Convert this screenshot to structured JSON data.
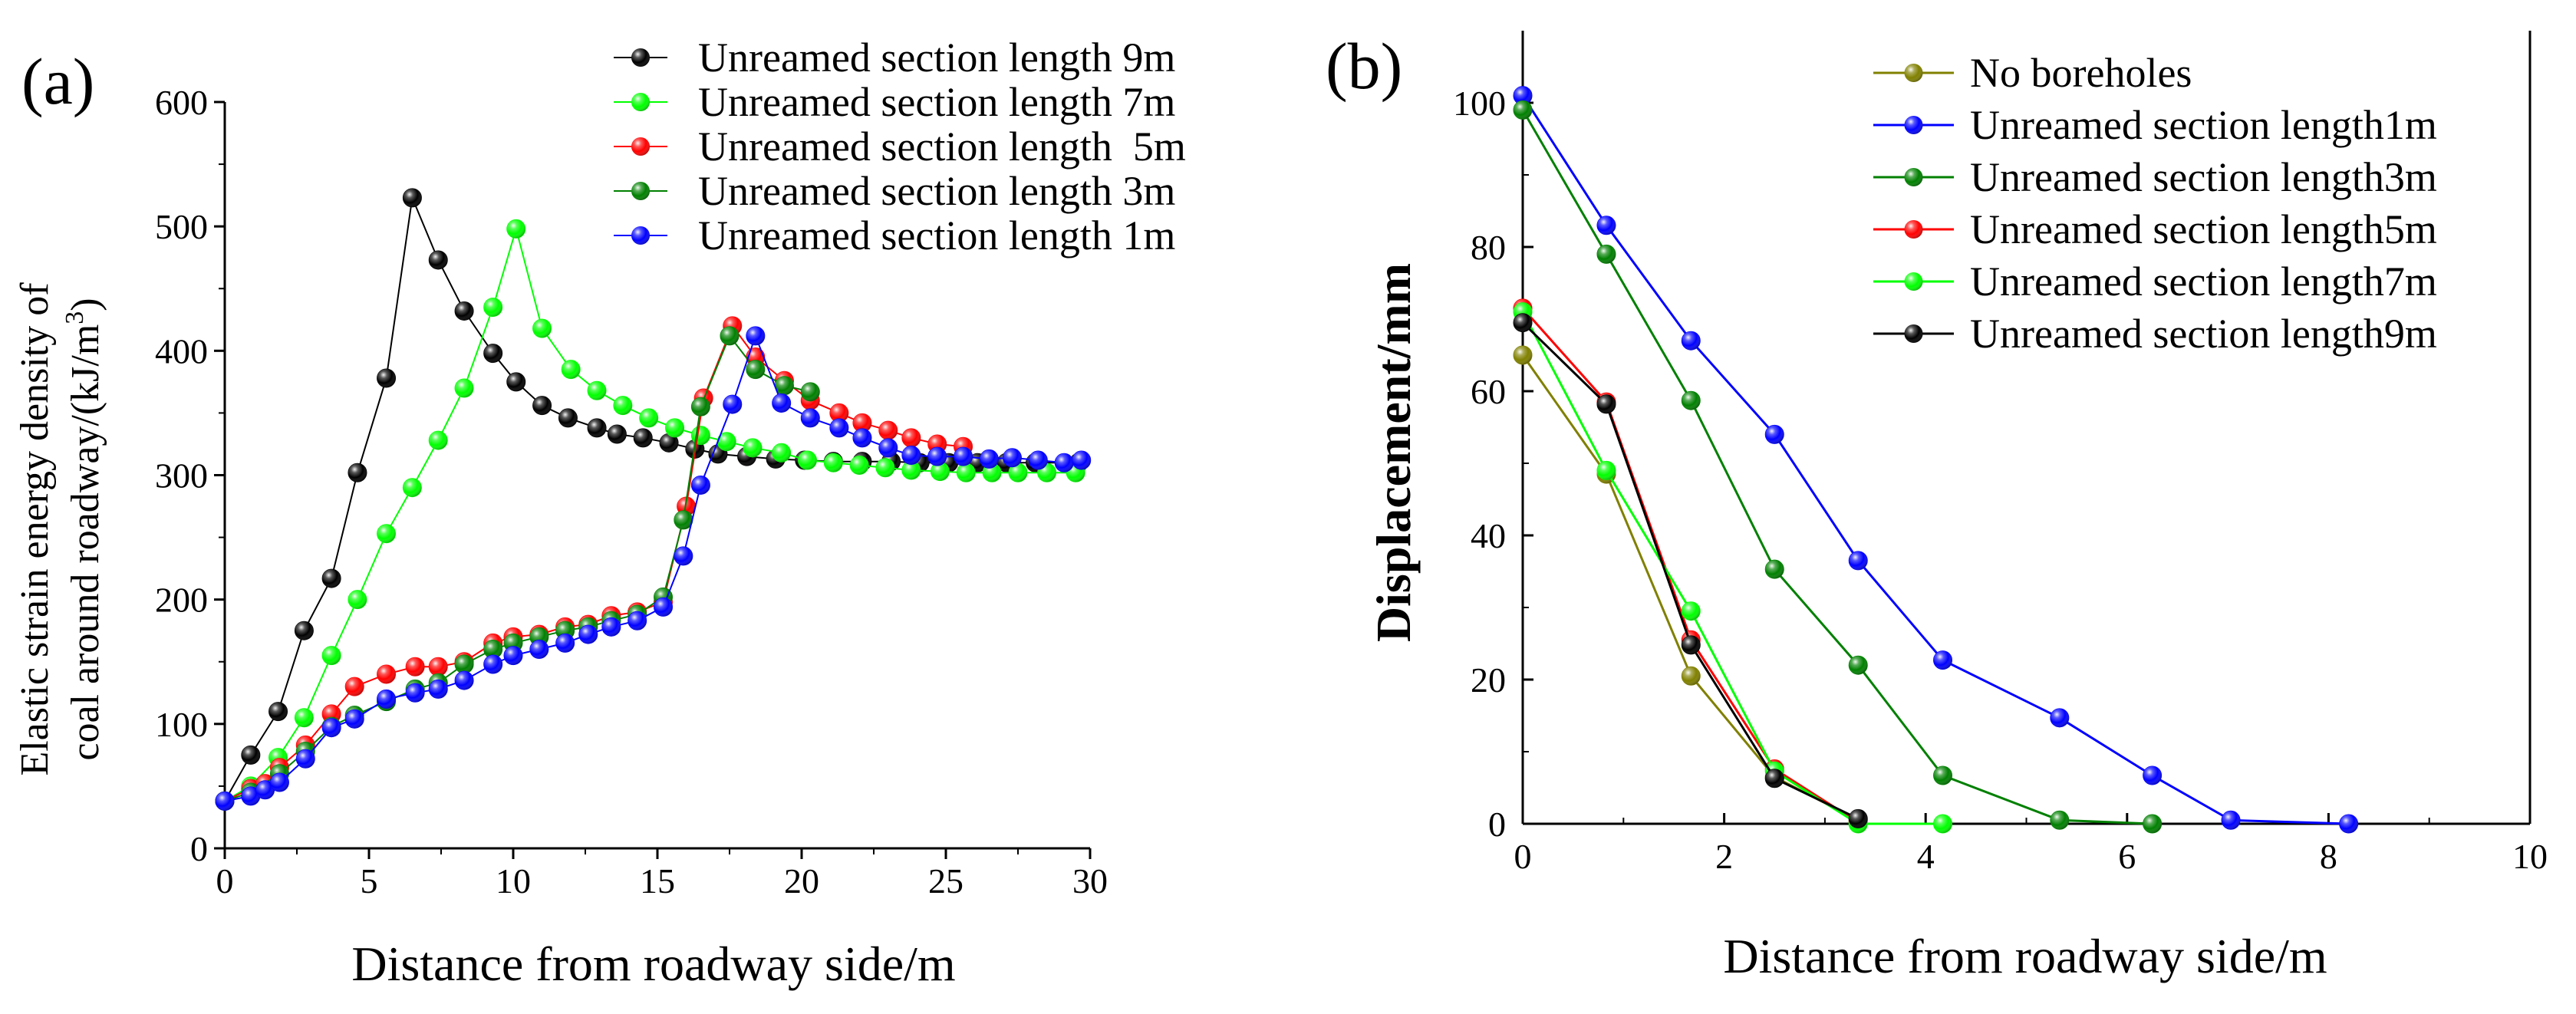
{
  "chart_data": [
    {
      "panel_label": "(a)",
      "type": "line",
      "xlabel": "Distance from roadway side/m",
      "ylabel_line1": "Elastic strain energy density of",
      "ylabel_line2_prefix": "coal around roadway/(kJ/m",
      "ylabel_line2_sup": "3",
      "ylabel_line2_suffix": ")",
      "xlim": [
        0,
        30
      ],
      "ylim": [
        0,
        600
      ],
      "xticks": [
        0,
        5,
        10,
        15,
        20,
        25,
        30
      ],
      "yticks": [
        0,
        100,
        200,
        300,
        400,
        500,
        600
      ],
      "legend_position": "top-right",
      "series": [
        {
          "name": "Unreamed section length 9m",
          "color": "#000000",
          "x": [
            0,
            0.9,
            1.85,
            2.75,
            3.7,
            4.6,
            5.6,
            6.5,
            7.4,
            8.3,
            9.3,
            10.1,
            11,
            11.9,
            12.9,
            13.6,
            14.5,
            15.4,
            16.3,
            17.1,
            18.1,
            19.1,
            20.1,
            21.1,
            22.1,
            23.1,
            24.1,
            25.1,
            26.1,
            27.1,
            28.1,
            29.6
          ],
          "y": [
            38,
            75,
            110,
            175,
            217,
            302,
            378,
            523,
            473,
            432,
            398,
            375,
            356,
            346,
            338,
            333,
            330,
            326,
            321,
            317,
            315,
            313,
            312,
            311,
            311,
            311,
            310,
            310,
            310,
            310,
            310,
            310
          ]
        },
        {
          "name": "Unreamed section length 7m",
          "color": "#00ff00",
          "x": [
            0,
            0.9,
            1.85,
            2.75,
            3.7,
            4.6,
            5.6,
            6.5,
            7.4,
            8.3,
            9.3,
            10.1,
            11,
            12,
            12.9,
            13.8,
            14.7,
            15.6,
            16.5,
            17.4,
            18.3,
            19.3,
            20.2,
            21.1,
            22,
            22.9,
            23.8,
            24.8,
            25.7,
            26.6,
            27.5,
            28.5,
            29.5
          ],
          "y": [
            38,
            50,
            73,
            105,
            155,
            200,
            253,
            290,
            328,
            370,
            435,
            498,
            418,
            385,
            368,
            356,
            346,
            338,
            332,
            327,
            322,
            318,
            312,
            310,
            308,
            306,
            304,
            303,
            302,
            302,
            302,
            302,
            302
          ]
        },
        {
          "name": "Unreamed section length  5m",
          "color": "#ff0000",
          "x": [
            0,
            0.9,
            1.4,
            1.9,
            2.8,
            3.7,
            4.5,
            5.6,
            6.6,
            7.4,
            8.3,
            9.3,
            10,
            10.9,
            11.8,
            12.6,
            13.4,
            14.3,
            15.2,
            16,
            16.6,
            17.6,
            18.4,
            19.4,
            20.3,
            21.3,
            22.1,
            23,
            23.8,
            24.7,
            25.6
          ],
          "y": [
            38,
            48,
            52,
            65,
            83,
            108,
            130,
            140,
            146,
            146,
            150,
            165,
            170,
            172,
            178,
            180,
            187,
            190,
            198,
            275,
            362,
            420,
            395,
            376,
            360,
            350,
            342,
            336,
            330,
            325,
            323
          ]
        },
        {
          "name": "Unreamed section length 3m",
          "color": "#008000",
          "x": [
            0,
            0.9,
            1.9,
            2.8,
            3.7,
            4.5,
            5.6,
            6.6,
            7.4,
            8.3,
            9.3,
            10,
            10.9,
            11.8,
            12.6,
            13.4,
            14.3,
            15.2,
            15.9,
            16.5,
            17.5,
            18.4,
            19.4,
            20.3
          ],
          "y": [
            38,
            45,
            60,
            78,
            98,
            107,
            118,
            128,
            133,
            148,
            160,
            165,
            170,
            175,
            178,
            183,
            188,
            202,
            264,
            355,
            412,
            385,
            372,
            367
          ]
        },
        {
          "name": "Unreamed section length 1m",
          "color": "#0000ff",
          "x": [
            0,
            0.9,
            1.4,
            1.9,
            2.8,
            3.7,
            4.5,
            5.6,
            6.6,
            7.4,
            8.3,
            9.3,
            10,
            10.9,
            11.8,
            12.6,
            13.4,
            14.3,
            15.2,
            15.9,
            16.5,
            17.6,
            18.4,
            19.3,
            20.3,
            21.3,
            22.1,
            23,
            23.8,
            24.7,
            25.6,
            26.5,
            27.3,
            28.2,
            29.1,
            29.7
          ],
          "y": [
            38,
            42,
            47,
            53,
            72,
            97,
            104,
            120,
            125,
            128,
            135,
            148,
            155,
            160,
            165,
            172,
            178,
            183,
            194,
            235,
            292,
            357,
            412,
            358,
            346,
            338,
            330,
            322,
            316,
            315,
            315,
            313,
            314,
            312,
            310,
            312
          ]
        }
      ]
    },
    {
      "panel_label": "(b)",
      "type": "line",
      "xlabel": "Distance from roadway side/m",
      "ylabel": "Displacement/mm",
      "xlim": [
        0,
        10
      ],
      "ylim": [
        0,
        110
      ],
      "xticks": [
        0,
        2,
        4,
        6,
        8,
        10
      ],
      "yticks": [
        0,
        20,
        40,
        60,
        80,
        100
      ],
      "legend_position": "top-right",
      "series": [
        {
          "name": "No boreholes",
          "color": "#808000",
          "x": [
            0,
            0.83,
            1.67,
            2.5,
            3.33
          ],
          "y": [
            65,
            48.5,
            20.5,
            6.5,
            0.5
          ]
        },
        {
          "name": "Unreamed section length1m",
          "color": "#0000ff",
          "x": [
            0,
            0.83,
            1.67,
            2.5,
            3.33,
            4.17,
            5.33,
            6.25,
            7.03,
            8.2
          ],
          "y": [
            101,
            83,
            67,
            54,
            36.5,
            22.7,
            14.7,
            6.7,
            0.5,
            0
          ]
        },
        {
          "name": "Unreamed section length3m",
          "color": "#008000",
          "x": [
            0,
            0.83,
            1.67,
            2.5,
            3.33,
            4.17,
            5.33,
            6.25
          ],
          "y": [
            99,
            79,
            58.7,
            35.3,
            22,
            6.7,
            0.5,
            0
          ]
        },
        {
          "name": "Unreamed section length5m",
          "color": "#ff0000",
          "x": [
            0,
            0.83,
            1.67,
            2.5,
            3.33
          ],
          "y": [
            71.5,
            58.5,
            25.5,
            7.6,
            0.2
          ]
        },
        {
          "name": "Unreamed section length7m",
          "color": "#00ff00",
          "x": [
            0,
            0.83,
            1.67,
            2.5,
            3.33,
            4.17
          ],
          "y": [
            71,
            49,
            29.5,
            7.3,
            0,
            0
          ]
        },
        {
          "name": "Unreamed section length9m",
          "color": "#000000",
          "x": [
            0,
            0.83,
            1.67,
            2.5,
            3.33
          ],
          "y": [
            69.5,
            58.2,
            24.8,
            6.3,
            0.7
          ]
        }
      ]
    }
  ]
}
